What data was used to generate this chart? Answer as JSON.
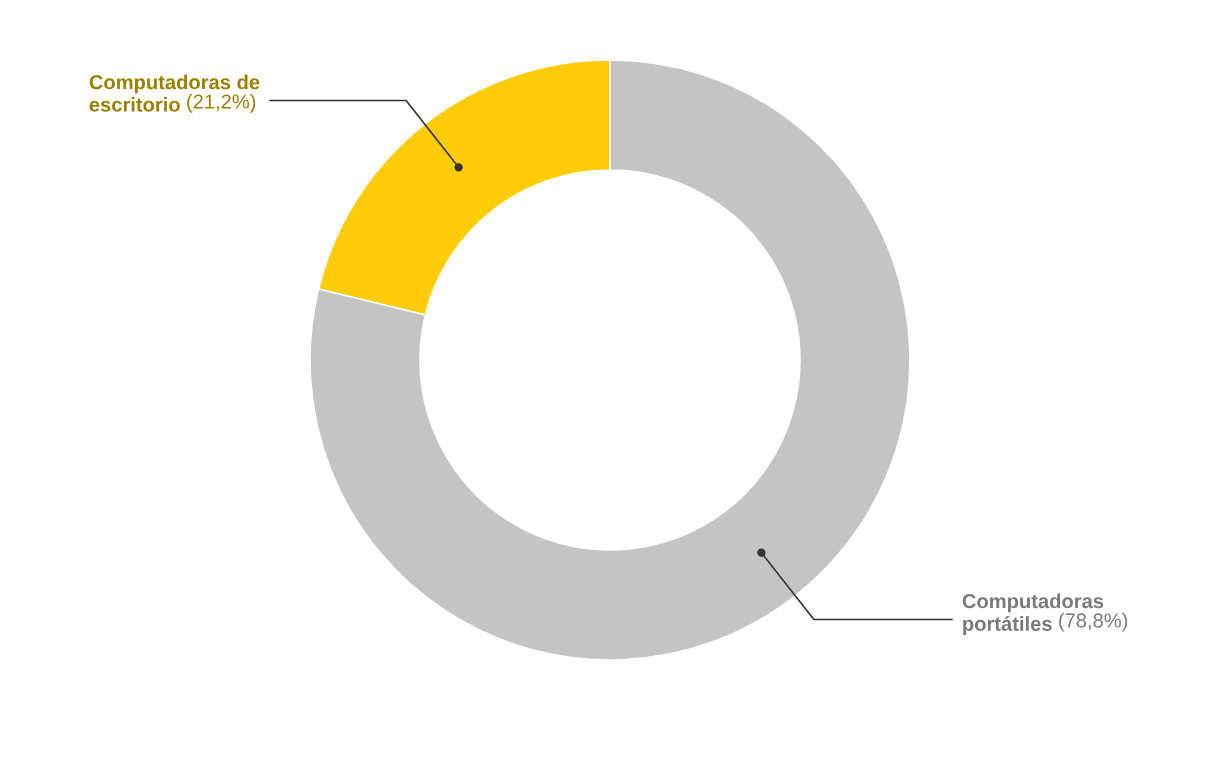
{
  "chart_data": {
    "type": "donut",
    "categories": [
      "Computadoras de escritorio",
      "Computadoras portátiles"
    ],
    "values": [
      21.2,
      78.8
    ],
    "colors": [
      "#fecc09",
      "#c4c4c4"
    ],
    "value_labels": [
      "(21,2%)",
      "(78,8%)"
    ],
    "legend": false
  }
}
